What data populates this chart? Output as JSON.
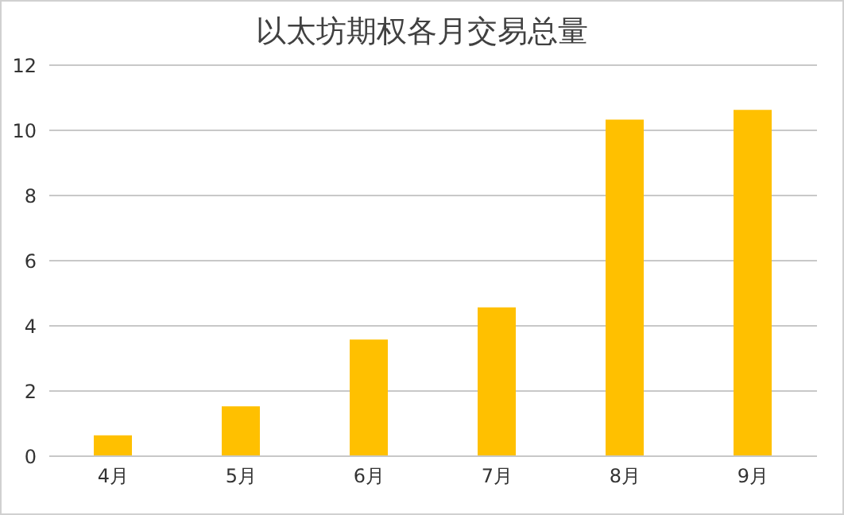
{
  "chart_data": {
    "type": "bar",
    "title": "以太坊期权各月交易总量",
    "categories": [
      "4月",
      "5月",
      "6月",
      "7月",
      "8月",
      "9月"
    ],
    "values": [
      0.64,
      1.53,
      3.58,
      4.57,
      10.33,
      10.63
    ],
    "color": "#ffc000",
    "ylim": [
      0,
      12
    ],
    "yticks": [
      0,
      2,
      4,
      6,
      8,
      10,
      12
    ],
    "grid": "y"
  }
}
